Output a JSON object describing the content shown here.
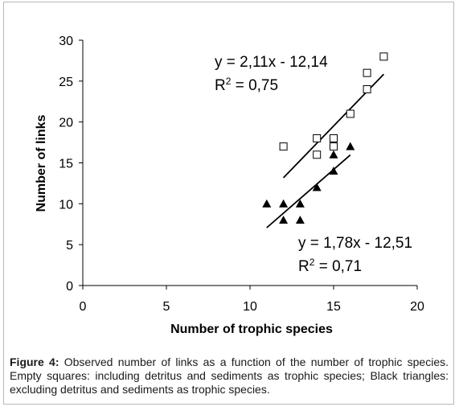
{
  "chart_data": {
    "type": "scatter",
    "xlabel": "Number of trophic species",
    "ylabel": "Number of links",
    "xlim": [
      0,
      20
    ],
    "ylim": [
      0,
      30
    ],
    "xticks": [
      0,
      5,
      10,
      15,
      20
    ],
    "yticks": [
      0,
      5,
      10,
      15,
      20,
      25,
      30
    ],
    "grid": false,
    "series": [
      {
        "marker": "empty-square",
        "points": [
          {
            "x": 12,
            "y": 17
          },
          {
            "x": 14,
            "y": 18
          },
          {
            "x": 14,
            "y": 16
          },
          {
            "x": 15,
            "y": 18
          },
          {
            "x": 15,
            "y": 17
          },
          {
            "x": 16,
            "y": 21
          },
          {
            "x": 17,
            "y": 24
          },
          {
            "x": 17,
            "y": 26
          },
          {
            "x": 18,
            "y": 28
          }
        ],
        "trendline": {
          "slope": 2.11,
          "intercept": -12.14,
          "x_range": [
            12,
            18
          ]
        },
        "equation": "y = 2,11x - 12,14",
        "r2_prefix": "R",
        "r2_exp": "2",
        "r2_value": " = 0,75"
      },
      {
        "marker": "filled-triangle",
        "points": [
          {
            "x": 11,
            "y": 10
          },
          {
            "x": 12,
            "y": 10
          },
          {
            "x": 12,
            "y": 8
          },
          {
            "x": 13,
            "y": 10
          },
          {
            "x": 13,
            "y": 8
          },
          {
            "x": 14,
            "y": 12
          },
          {
            "x": 15,
            "y": 14
          },
          {
            "x": 15,
            "y": 16
          },
          {
            "x": 16,
            "y": 17
          }
        ],
        "trendline": {
          "slope": 1.78,
          "intercept": -12.51,
          "x_range": [
            11,
            16
          ]
        },
        "equation": "y = 1,78x - 12,51",
        "r2_prefix": "R",
        "r2_exp": "2",
        "r2_value": " = 0,71"
      }
    ]
  },
  "caption": {
    "label": "Figure 4:",
    "text": " Observed number of links as a function of the number of trophic species. Empty squares: including detritus and sediments as trophic species; Black triangles: excluding detritus and sediments as trophic species."
  }
}
